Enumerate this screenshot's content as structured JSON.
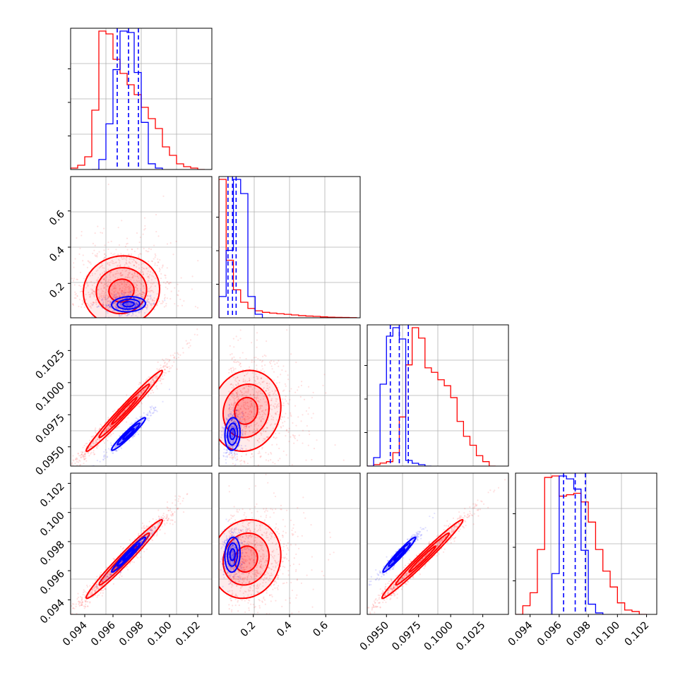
{
  "figure": {
    "type": "corner-plot"
  },
  "colors": {
    "series_a": "#ff0000",
    "series_b": "#0000ff",
    "grid": "#b0b0b0",
    "axis": "#000000"
  },
  "chart_data": [
    {
      "type": "histogram",
      "row": 0,
      "col": 0,
      "xlim": [
        0.093,
        0.103
      ],
      "ylim": [
        0,
        1
      ],
      "series": [
        {
          "color": "#ff0000",
          "x": [
            0.093,
            0.0935,
            0.094,
            0.0945,
            0.095,
            0.0955,
            0.096,
            0.0965,
            0.097,
            0.0975,
            0.098,
            0.0985,
            0.099,
            0.0995,
            0.1,
            0.1005,
            0.101,
            0.1015,
            0.102,
            0.1025
          ],
          "values": [
            0.01,
            0.03,
            0.09,
            0.42,
            0.98,
            0.96,
            0.78,
            0.68,
            0.6,
            0.53,
            0.44,
            0.36,
            0.29,
            0.16,
            0.1,
            0.04,
            0.02,
            0.01,
            0.0
          ]
        },
        {
          "color": "#0000ff",
          "x": [
            0.0945,
            0.095,
            0.0955,
            0.096,
            0.0965,
            0.097,
            0.0975,
            0.098,
            0.0985,
            0.099,
            0.0995
          ],
          "values": [
            0.0,
            0.07,
            0.32,
            0.7,
            0.97,
            0.96,
            0.68,
            0.33,
            0.04,
            0.01
          ]
        }
      ],
      "quantile_lines": [
        0.0963,
        0.0971,
        0.0978
      ]
    },
    {
      "type": "histogram",
      "row": 1,
      "col": 1,
      "xlim": [
        0.01,
        0.79
      ],
      "ylim": [
        0,
        1
      ],
      "series": [
        {
          "color": "#ff0000",
          "x": [
            0.01,
            0.05,
            0.09,
            0.13,
            0.17,
            0.21,
            0.25,
            0.29,
            0.33,
            0.37,
            0.41,
            0.45,
            0.49,
            0.53,
            0.57,
            0.61,
            0.65,
            0.69,
            0.73,
            0.77
          ],
          "values": [
            0.89,
            0.37,
            0.18,
            0.1,
            0.06,
            0.045,
            0.035,
            0.03,
            0.026,
            0.022,
            0.018,
            0.014,
            0.011,
            0.009,
            0.006,
            0.004,
            0.003,
            0.002,
            0.001
          ]
        },
        {
          "color": "#0000ff",
          "x": [
            0.01,
            0.05,
            0.09,
            0.13,
            0.17,
            0.21,
            0.25
          ],
          "values": [
            0.12,
            0.38,
            0.78,
            0.7,
            0.12,
            0.02
          ]
        }
      ],
      "quantile_lines": [
        0.06,
        0.085,
        0.105
      ]
    },
    {
      "type": "histogram",
      "row": 2,
      "col": 2,
      "xlim": [
        0.0935,
        0.1045
      ],
      "ylim": [
        0,
        1
      ],
      "series": [
        {
          "color": "#ff0000",
          "x": [
            0.0935,
            0.094,
            0.0945,
            0.095,
            0.0955,
            0.096,
            0.0965,
            0.097,
            0.0975,
            0.098,
            0.0985,
            0.099,
            0.0995,
            0.1,
            0.1005,
            0.101,
            0.1015,
            0.102,
            0.1025,
            0.103,
            0.1035
          ],
          "values": [
            0.0,
            0.01,
            0.02,
            0.03,
            0.09,
            0.33,
            0.68,
            0.93,
            0.86,
            0.66,
            0.63,
            0.58,
            0.54,
            0.46,
            0.3,
            0.2,
            0.14,
            0.07,
            0.03,
            0.0
          ]
        },
        {
          "color": "#0000ff",
          "x": [
            0.0935,
            0.094,
            0.0945,
            0.095,
            0.0955,
            0.096,
            0.0965,
            0.097,
            0.0975,
            0.098,
            0.0985
          ],
          "values": [
            0.0,
            0.06,
            0.58,
            0.92,
            0.98,
            0.9,
            0.04,
            0.02,
            0.01,
            0.0
          ]
        }
      ],
      "quantile_lines": [
        0.0953,
        0.096,
        0.0967
      ]
    },
    {
      "type": "histogram",
      "row": 3,
      "col": 3,
      "xlim": [
        0.093,
        0.1027
      ],
      "ylim": [
        0,
        1
      ],
      "ticks": [
        0.094,
        0.096,
        0.098,
        0.1,
        0.102
      ],
      "tick_labels": [
        "0.094",
        "0.096",
        "0.098",
        "0.100",
        "0.102"
      ],
      "series": [
        {
          "color": "#ff0000",
          "x": [
            0.093,
            0.0935,
            0.094,
            0.0945,
            0.095,
            0.0955,
            0.096,
            0.0965,
            0.097,
            0.0975,
            0.098,
            0.0985,
            0.099,
            0.0995,
            0.1,
            0.1005,
            0.101,
            0.1015,
            0.102
          ],
          "values": [
            0.0,
            0.06,
            0.15,
            0.45,
            0.95,
            0.96,
            0.82,
            0.83,
            0.84,
            0.78,
            0.64,
            0.45,
            0.3,
            0.19,
            0.08,
            0.03,
            0.02,
            0.0
          ]
        },
        {
          "color": "#0000ff",
          "x": [
            0.0955,
            0.096,
            0.0965,
            0.097,
            0.0975,
            0.098,
            0.0985,
            0.099
          ],
          "values": [
            0.28,
            0.95,
            0.93,
            0.86,
            0.44,
            0.07,
            0.01
          ]
        }
      ],
      "quantile_lines": [
        0.0963,
        0.0971,
        0.0978
      ]
    },
    {
      "type": "scatter-contour",
      "row": 1,
      "col": 0,
      "xlim": [
        0.093,
        0.103
      ],
      "ylim": [
        0.01,
        0.79
      ],
      "y_ticks": [
        0.2,
        0.4,
        0.6
      ],
      "y_tick_labels": [
        "0.2",
        "0.4",
        "0.6"
      ],
      "series": [
        {
          "color": "#ff0000",
          "center": [
            0.0966,
            0.16
          ],
          "spread": [
            0.0018,
            0.16
          ],
          "rho": 0.05,
          "skew_y": true
        },
        {
          "color": "#0000ff",
          "center": [
            0.0971,
            0.085
          ],
          "spread": [
            0.0008,
            0.028
          ],
          "rho": 0.1
        }
      ]
    },
    {
      "type": "scatter-contour",
      "row": 2,
      "col": 0,
      "xlim": [
        0.093,
        0.103
      ],
      "ylim": [
        0.0935,
        0.1045
      ],
      "y_ticks": [
        0.095,
        0.0975,
        0.1,
        0.1025
      ],
      "y_tick_labels": [
        "0.0950",
        "0.0975",
        "0.1000",
        "0.1025"
      ],
      "series": [
        {
          "color": "#ff0000",
          "center": [
            0.0968,
            0.0978
          ],
          "spread": [
            0.0018,
            0.0021
          ],
          "rho": 0.985
        },
        {
          "color": "#0000ff",
          "center": [
            0.0971,
            0.096
          ],
          "spread": [
            0.0008,
            0.00085
          ],
          "rho": 0.96
        }
      ]
    },
    {
      "type": "scatter-contour",
      "row": 2,
      "col": 1,
      "xlim": [
        0.01,
        0.79
      ],
      "ylim": [
        0.0935,
        0.1045
      ],
      "series": [
        {
          "color": "#ff0000",
          "center": [
            0.16,
            0.0978
          ],
          "spread": [
            0.16,
            0.0021
          ],
          "rho": 0.1,
          "skew_x": true
        },
        {
          "color": "#0000ff",
          "center": [
            0.085,
            0.096
          ],
          "spread": [
            0.028,
            0.00085
          ],
          "rho": 0.1
        }
      ]
    },
    {
      "type": "scatter-contour",
      "row": 3,
      "col": 0,
      "xlim": [
        0.093,
        0.103
      ],
      "ylim": [
        0.093,
        0.1027
      ],
      "x_ticks": [
        0.094,
        0.096,
        0.098,
        0.1,
        0.102
      ],
      "x_tick_labels": [
        "0.094",
        "0.096",
        "0.098",
        "0.100",
        "0.102"
      ],
      "y_ticks": [
        0.094,
        0.096,
        0.098,
        0.1,
        0.102
      ],
      "y_tick_labels": [
        "0.094",
        "0.096",
        "0.098",
        "0.100",
        "0.102"
      ],
      "series": [
        {
          "color": "#ff0000",
          "center": [
            0.0968,
            0.0968
          ],
          "spread": [
            0.0018,
            0.0018
          ],
          "rho": 0.98
        },
        {
          "color": "#0000ff",
          "center": [
            0.0971,
            0.0971
          ],
          "spread": [
            0.0008,
            0.0008
          ],
          "rho": 0.97
        }
      ]
    },
    {
      "type": "scatter-contour",
      "row": 3,
      "col": 1,
      "xlim": [
        0.01,
        0.79
      ],
      "ylim": [
        0.093,
        0.1027
      ],
      "x_ticks": [
        0.2,
        0.4,
        0.6
      ],
      "x_tick_labels": [
        "0.2",
        "0.4",
        "0.6"
      ],
      "series": [
        {
          "color": "#ff0000",
          "center": [
            0.16,
            0.0968
          ],
          "spread": [
            0.16,
            0.0018
          ],
          "rho": 0.1,
          "skew_x": true
        },
        {
          "color": "#0000ff",
          "center": [
            0.085,
            0.0971
          ],
          "spread": [
            0.028,
            0.0008
          ],
          "rho": 0.1
        }
      ]
    },
    {
      "type": "scatter-contour",
      "row": 3,
      "col": 2,
      "xlim": [
        0.0935,
        0.1045
      ],
      "ylim": [
        0.093,
        0.1027
      ],
      "x_ticks": [
        0.095,
        0.0975,
        0.1,
        0.1025
      ],
      "x_tick_labels": [
        "0.0950",
        "0.0975",
        "0.1000",
        "0.1025"
      ],
      "series": [
        {
          "color": "#ff0000",
          "center": [
            0.0978,
            0.0968
          ],
          "spread": [
            0.0021,
            0.0018
          ],
          "rho": 0.985
        },
        {
          "color": "#0000ff",
          "center": [
            0.096,
            0.0971
          ],
          "spread": [
            0.00085,
            0.0008
          ],
          "rho": 0.97
        }
      ]
    }
  ]
}
